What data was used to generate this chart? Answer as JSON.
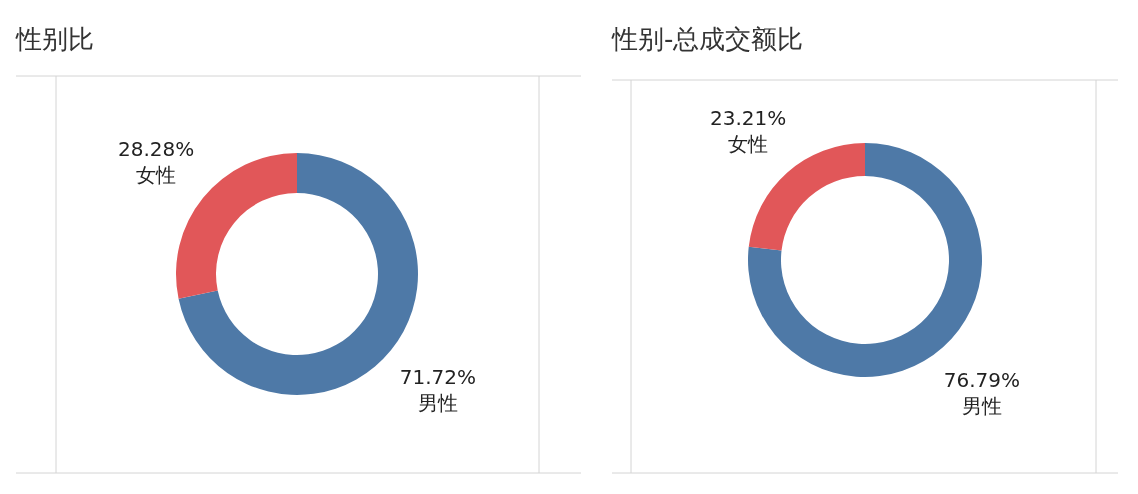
{
  "chart_data": [
    {
      "type": "donut",
      "title": "性别比",
      "categories": [
        "男性",
        "女性"
      ],
      "values": [
        71.72,
        28.28
      ],
      "colors": [
        "#4e79a7",
        "#e15759"
      ],
      "value_labels": [
        "71.72%",
        "28.28%"
      ]
    },
    {
      "type": "donut",
      "title": "性别-总成交额比",
      "categories": [
        "男性",
        "女性"
      ],
      "values": [
        76.79,
        23.21
      ],
      "colors": [
        "#4e79a7",
        "#e15759"
      ],
      "value_labels": [
        "76.79%",
        "23.21%"
      ]
    }
  ]
}
